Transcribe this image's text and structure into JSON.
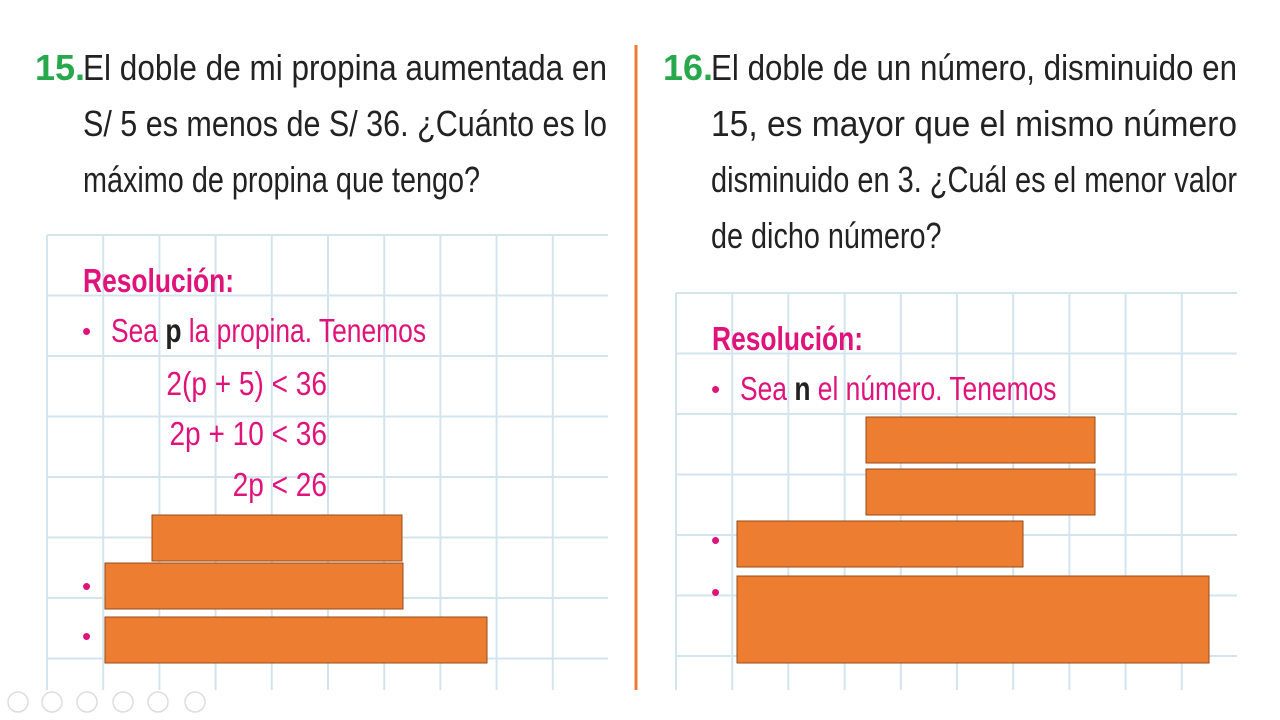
{
  "problems": [
    {
      "number": "15.",
      "lines": [
        "El doble de mi propina aumentada en",
        "S/ 5 es menos de S/ 36. ¿Cuánto es lo",
        "máximo de propina que tengo?"
      ],
      "resolution": {
        "label": "Resolución:",
        "bullet": "•",
        "intro": [
          "Sea ",
          "p",
          " la propina. Tenemos"
        ],
        "steps": [
          "2(p + 5) < 36",
          "2p + 10 < 36",
          "2p < 26"
        ],
        "hidden_bullets": [
          "•",
          "•"
        ]
      }
    },
    {
      "number": "16.",
      "lines": [
        "El doble de un número, disminuido en",
        "15, es mayor que el mismo número",
        "disminuido en 3. ¿Cuál es el menor valor",
        "de dicho número?"
      ],
      "resolution": {
        "label": "Resolución:",
        "bullet": "•",
        "intro": [
          "Sea ",
          "n",
          " el número. Tenemos"
        ],
        "steps": [],
        "hidden_bullets": [
          "•",
          "•"
        ]
      }
    }
  ]
}
